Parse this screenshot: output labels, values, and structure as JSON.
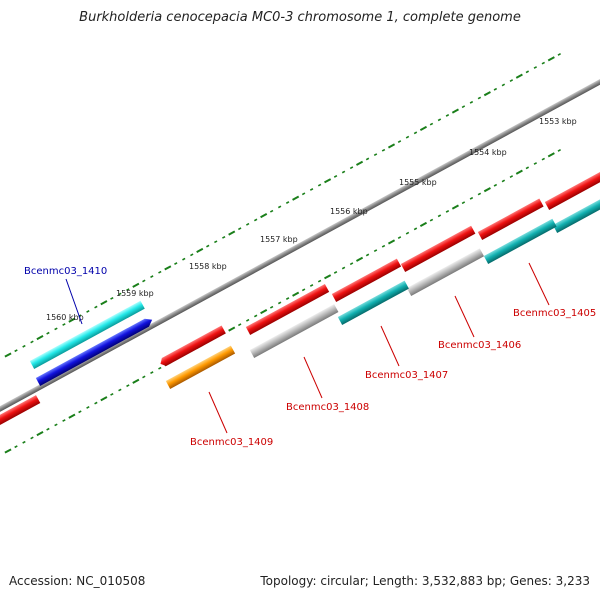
{
  "title": "Burkholderia cenocepacia MC0-3 chromosome 1, complete genome",
  "accession": "Accession: NC_010508",
  "topology": "Topology: circular; Length: 3,532,883 bp; Genes: 3,233",
  "kbp_labels": [
    "1553 kbp",
    "1554 kbp",
    "1555 kbp",
    "1556 kbp",
    "1557 kbp",
    "1558 kbp",
    "1559 kbp",
    "1560 kbp"
  ],
  "genes": [
    {
      "label": "Bcenmc03_1405",
      "color": "#cc0000"
    },
    {
      "label": "Bcenmc03_1406",
      "color": "#cc0000"
    },
    {
      "label": "Bcenmc03_1407",
      "color": "#cc0000"
    },
    {
      "label": "Bcenmc03_1408",
      "color": "#cc0000"
    },
    {
      "label": "Bcenmc03_1409",
      "color": "#cc0000"
    },
    {
      "label": "Bcenmc03_1410",
      "color": "#0000aa"
    }
  ],
  "colors": {
    "backbone": "#8a8a8a",
    "ticks": "#1a7f1a",
    "red": "#ee1111",
    "cyan": "#22dddd",
    "teal": "#11aaaa",
    "blue": "#1111dd",
    "orange": "#ff9900",
    "gray": "#b5b5b5"
  }
}
